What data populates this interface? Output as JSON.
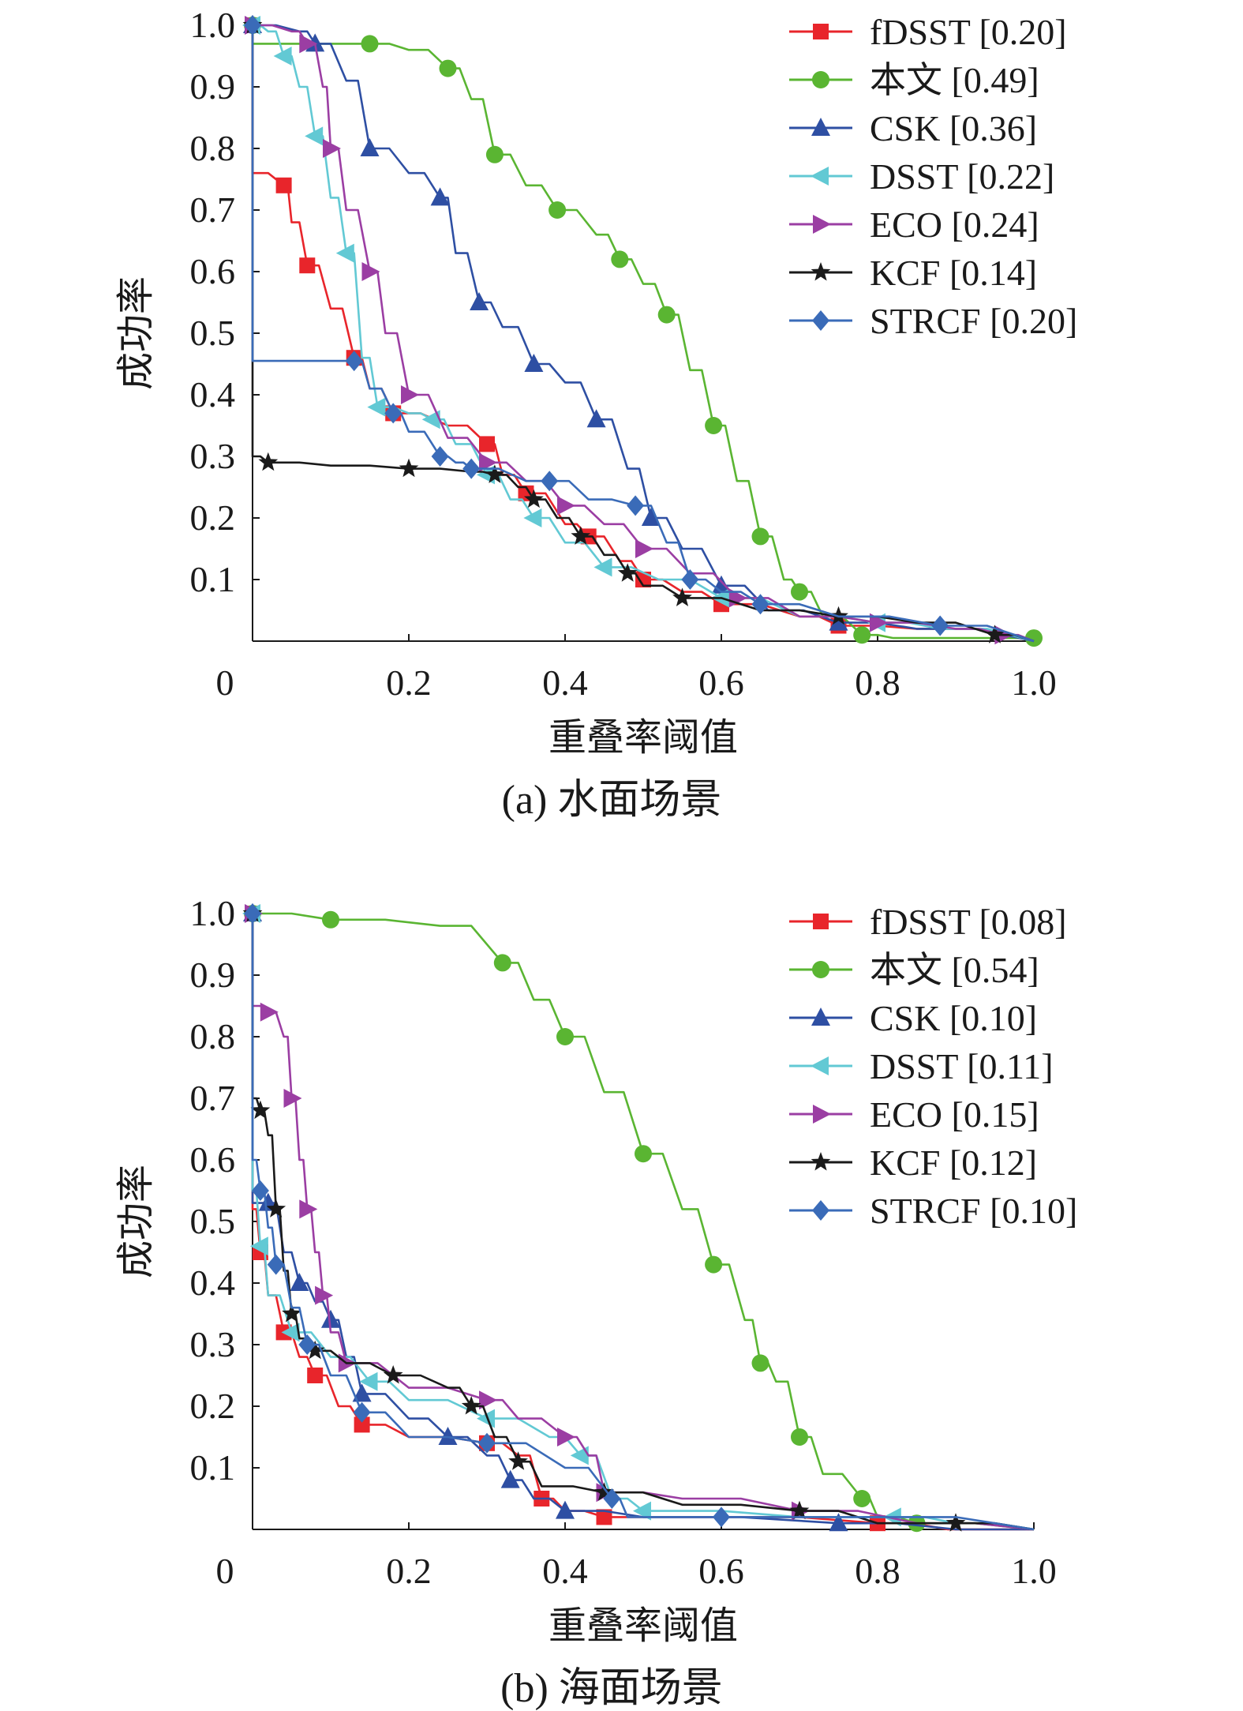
{
  "chart_data": [
    {
      "type": "line",
      "caption": "(a) 水面场景",
      "xlabel": "重叠率阈值",
      "ylabel": "成功率",
      "xlim": [
        0,
        1.0
      ],
      "ylim": [
        0,
        1.0
      ],
      "xticks": [
        "0",
        "0.2",
        "0.4",
        "0.6",
        "0.8",
        "1.0"
      ],
      "yticks": [
        "0.1",
        "0.2",
        "0.3",
        "0.4",
        "0.5",
        "0.6",
        "0.7",
        "0.8",
        "0.9",
        "1.0"
      ],
      "legend_position": "top-right",
      "series": [
        {
          "name": "fDSST [0.20]",
          "color": "#e8252b",
          "marker": "square",
          "x": [
            0,
            0,
            0.04,
            0.05,
            0.07,
            0.1,
            0.13,
            0.15,
            0.18,
            0.25,
            0.3,
            0.32,
            0.35,
            0.4,
            0.43,
            0.47,
            0.5,
            0.55,
            0.6,
            0.7,
            0.75,
            0.85,
            1.0
          ],
          "y": [
            1.0,
            0.76,
            0.74,
            0.68,
            0.61,
            0.54,
            0.46,
            0.41,
            0.37,
            0.35,
            0.32,
            0.27,
            0.24,
            0.19,
            0.17,
            0.13,
            0.1,
            0.08,
            0.06,
            0.04,
            0.025,
            0.02,
            0
          ]
        },
        {
          "name": "本文 [0.49]",
          "color": "#5ab532",
          "marker": "circle",
          "x": [
            0,
            0,
            0.15,
            0.2,
            0.25,
            0.28,
            0.31,
            0.35,
            0.39,
            0.44,
            0.47,
            0.5,
            0.53,
            0.56,
            0.59,
            0.62,
            0.65,
            0.68,
            0.7,
            0.73,
            0.78,
            0.82,
            1.0
          ],
          "y": [
            1.0,
            0.97,
            0.97,
            0.96,
            0.93,
            0.88,
            0.79,
            0.74,
            0.7,
            0.66,
            0.62,
            0.58,
            0.53,
            0.44,
            0.35,
            0.26,
            0.17,
            0.1,
            0.08,
            0.04,
            0.01,
            0.005,
            0.005
          ]
        },
        {
          "name": "CSK [0.36]",
          "color": "#2e4fa3",
          "marker": "triangle-up",
          "x": [
            0,
            0.06,
            0.08,
            0.12,
            0.15,
            0.2,
            0.24,
            0.26,
            0.29,
            0.32,
            0.36,
            0.4,
            0.44,
            0.48,
            0.51,
            0.55,
            0.6,
            0.66,
            0.75,
            0.85,
            1.0
          ],
          "y": [
            1.0,
            0.99,
            0.97,
            0.91,
            0.8,
            0.76,
            0.72,
            0.63,
            0.55,
            0.51,
            0.45,
            0.42,
            0.36,
            0.28,
            0.2,
            0.15,
            0.09,
            0.05,
            0.03,
            0.02,
            0
          ]
        },
        {
          "name": "DSST [0.22]",
          "color": "#62c9d4",
          "marker": "triangle-left",
          "x": [
            0,
            0.02,
            0.04,
            0.06,
            0.08,
            0.1,
            0.12,
            0.14,
            0.16,
            0.2,
            0.23,
            0.26,
            0.3,
            0.33,
            0.36,
            0.4,
            0.45,
            0.52,
            0.6,
            0.7,
            0.8,
            0.88,
            1.0
          ],
          "y": [
            1.0,
            0.99,
            0.95,
            0.9,
            0.82,
            0.72,
            0.63,
            0.46,
            0.38,
            0.37,
            0.36,
            0.32,
            0.27,
            0.23,
            0.2,
            0.16,
            0.12,
            0.1,
            0.07,
            0.04,
            0.03,
            0.02,
            0
          ]
        },
        {
          "name": "ECO [0.24]",
          "color": "#9b3ea3",
          "marker": "triangle-right",
          "x": [
            0,
            0.05,
            0.07,
            0.09,
            0.1,
            0.12,
            0.15,
            0.17,
            0.2,
            0.25,
            0.3,
            0.35,
            0.4,
            0.45,
            0.5,
            0.56,
            0.62,
            0.7,
            0.8,
            0.9,
            0.96,
            1.0
          ],
          "y": [
            1.0,
            0.99,
            0.97,
            0.9,
            0.8,
            0.7,
            0.6,
            0.5,
            0.4,
            0.33,
            0.29,
            0.26,
            0.22,
            0.19,
            0.15,
            0.11,
            0.07,
            0.04,
            0.03,
            0.02,
            0.01,
            0
          ]
        },
        {
          "name": "KCF [0.14]",
          "color": "#1a1a1a",
          "marker": "star",
          "x": [
            0,
            0,
            0.02,
            0.1,
            0.2,
            0.28,
            0.31,
            0.34,
            0.36,
            0.39,
            0.42,
            0.45,
            0.48,
            0.5,
            0.55,
            0.65,
            0.75,
            0.85,
            0.95,
            1.0
          ],
          "y": [
            1.0,
            0.3,
            0.29,
            0.285,
            0.28,
            0.275,
            0.27,
            0.25,
            0.23,
            0.2,
            0.17,
            0.14,
            0.11,
            0.09,
            0.07,
            0.05,
            0.04,
            0.03,
            0.01,
            0
          ]
        },
        {
          "name": "STRCF [0.20]",
          "color": "#3a6bb8",
          "marker": "diamond",
          "x": [
            0,
            0,
            0.13,
            0.15,
            0.18,
            0.2,
            0.24,
            0.26,
            0.28,
            0.35,
            0.38,
            0.43,
            0.49,
            0.53,
            0.56,
            0.6,
            0.65,
            0.75,
            0.88,
            1.0
          ],
          "y": [
            1.0,
            0.455,
            0.455,
            0.41,
            0.37,
            0.34,
            0.3,
            0.29,
            0.28,
            0.26,
            0.26,
            0.23,
            0.22,
            0.16,
            0.1,
            0.08,
            0.06,
            0.04,
            0.025,
            0
          ]
        }
      ]
    },
    {
      "type": "line",
      "caption": "(b) 海面场景",
      "xlabel": "重叠率阈值",
      "ylabel": "成功率",
      "xlim": [
        0,
        1.0
      ],
      "ylim": [
        0,
        1.0
      ],
      "xticks": [
        "0",
        "0.2",
        "0.4",
        "0.6",
        "0.8",
        "1.0"
      ],
      "yticks": [
        "0.1",
        "0.2",
        "0.3",
        "0.4",
        "0.5",
        "0.6",
        "0.7",
        "0.8",
        "0.9",
        "1.0"
      ],
      "legend_position": "top-right",
      "series": [
        {
          "name": "fDSST [0.08]",
          "color": "#e8252b",
          "marker": "square",
          "x": [
            0,
            0,
            0.01,
            0.02,
            0.04,
            0.06,
            0.08,
            0.11,
            0.14,
            0.2,
            0.3,
            0.34,
            0.37,
            0.4,
            0.45,
            0.6,
            0.8,
            0.89,
            1.0
          ],
          "y": [
            1.0,
            0.52,
            0.45,
            0.38,
            0.32,
            0.28,
            0.25,
            0.2,
            0.17,
            0.15,
            0.14,
            0.12,
            0.05,
            0.03,
            0.02,
            0.02,
            0.01,
            0,
            0
          ]
        },
        {
          "name": "本文 [0.54]",
          "color": "#5ab532",
          "marker": "circle",
          "x": [
            0,
            0,
            0.1,
            0.24,
            0.32,
            0.36,
            0.4,
            0.45,
            0.5,
            0.55,
            0.59,
            0.63,
            0.65,
            0.67,
            0.7,
            0.73,
            0.78,
            0.8,
            0.85,
            1.0
          ],
          "y": [
            1.0,
            1.0,
            0.99,
            0.98,
            0.92,
            0.86,
            0.8,
            0.71,
            0.61,
            0.52,
            0.43,
            0.34,
            0.27,
            0.24,
            0.15,
            0.09,
            0.05,
            0.02,
            0.01,
            0
          ]
        },
        {
          "name": "CSK [0.10]",
          "color": "#2e4fa3",
          "marker": "triangle-up",
          "x": [
            0,
            0,
            0.02,
            0.04,
            0.06,
            0.08,
            0.1,
            0.12,
            0.14,
            0.2,
            0.25,
            0.3,
            0.33,
            0.36,
            0.4,
            0.5,
            0.75,
            0.9,
            1.0
          ],
          "y": [
            1.0,
            0.53,
            0.53,
            0.45,
            0.4,
            0.37,
            0.34,
            0.28,
            0.22,
            0.18,
            0.15,
            0.12,
            0.08,
            0.05,
            0.03,
            0.02,
            0.01,
            0,
            0
          ]
        },
        {
          "name": "DSST [0.11]",
          "color": "#62c9d4",
          "marker": "triangle-left",
          "x": [
            0,
            0,
            0.01,
            0.02,
            0.05,
            0.1,
            0.15,
            0.2,
            0.3,
            0.38,
            0.42,
            0.46,
            0.5,
            0.7,
            0.82,
            0.9,
            1.0
          ],
          "y": [
            1.0,
            0.55,
            0.46,
            0.38,
            0.32,
            0.28,
            0.24,
            0.21,
            0.18,
            0.15,
            0.12,
            0.05,
            0.03,
            0.02,
            0.02,
            0.01,
            0
          ]
        },
        {
          "name": "ECO [0.15]",
          "color": "#9b3ea3",
          "marker": "triangle-right",
          "x": [
            0,
            0,
            0.02,
            0.04,
            0.05,
            0.06,
            0.07,
            0.08,
            0.09,
            0.1,
            0.12,
            0.2,
            0.3,
            0.34,
            0.4,
            0.43,
            0.45,
            0.55,
            0.7,
            0.85,
            1.0
          ],
          "y": [
            1.0,
            0.85,
            0.84,
            0.8,
            0.7,
            0.6,
            0.52,
            0.45,
            0.38,
            0.32,
            0.27,
            0.23,
            0.21,
            0.18,
            0.15,
            0.12,
            0.06,
            0.05,
            0.03,
            0.01,
            0
          ]
        },
        {
          "name": "KCF [0.12]",
          "color": "#1a1a1a",
          "marker": "star",
          "x": [
            0,
            0,
            0.01,
            0.02,
            0.03,
            0.04,
            0.05,
            0.06,
            0.08,
            0.12,
            0.18,
            0.25,
            0.28,
            0.31,
            0.34,
            0.37,
            0.45,
            0.55,
            0.7,
            0.8,
            0.9,
            1.0
          ],
          "y": [
            1.0,
            0.7,
            0.68,
            0.64,
            0.52,
            0.42,
            0.35,
            0.31,
            0.29,
            0.27,
            0.25,
            0.23,
            0.2,
            0.15,
            0.11,
            0.07,
            0.06,
            0.04,
            0.03,
            0.01,
            0.01,
            0
          ]
        },
        {
          "name": "STRCF [0.10]",
          "color": "#3a6bb8",
          "marker": "diamond",
          "x": [
            0,
            0,
            0.01,
            0.02,
            0.03,
            0.05,
            0.07,
            0.1,
            0.14,
            0.2,
            0.3,
            0.4,
            0.46,
            0.48,
            0.6,
            0.8,
            1.0
          ],
          "y": [
            1.0,
            0.6,
            0.55,
            0.49,
            0.43,
            0.36,
            0.3,
            0.25,
            0.19,
            0.15,
            0.14,
            0.1,
            0.05,
            0.02,
            0.02,
            0.02,
            0
          ]
        }
      ]
    }
  ]
}
